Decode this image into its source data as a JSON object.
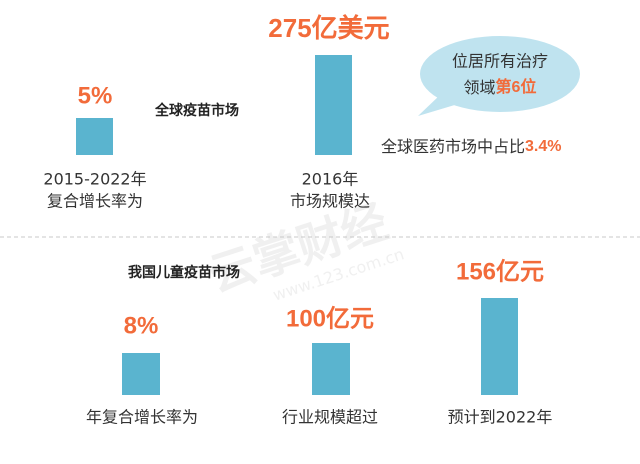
{
  "global_market": {
    "title": "全球疫苗市场",
    "growth": {
      "value": "5%",
      "label_line1": "2015-2022年",
      "label_line2": "复合增长率为"
    },
    "size": {
      "value": "275亿美元",
      "label_line1": "2016年",
      "label_line2": "市场规模达"
    },
    "bubble": {
      "line1": "位居所有治疗",
      "line2_prefix": "领域",
      "line2_highlight": "第6位"
    },
    "share": {
      "prefix": "全球医药市场中占比",
      "value": "3.4%"
    }
  },
  "china_market": {
    "title": "我国儿童疫苗市场",
    "growth": {
      "value": "8%",
      "label": "年复合增长率为"
    },
    "size": {
      "value": "100亿元",
      "label": "行业规模超过"
    },
    "forecast": {
      "value": "156亿元",
      "label": "预计到2022年"
    }
  },
  "watermark": {
    "brand": "云掌财经",
    "url": "www.123.com.cn"
  }
}
